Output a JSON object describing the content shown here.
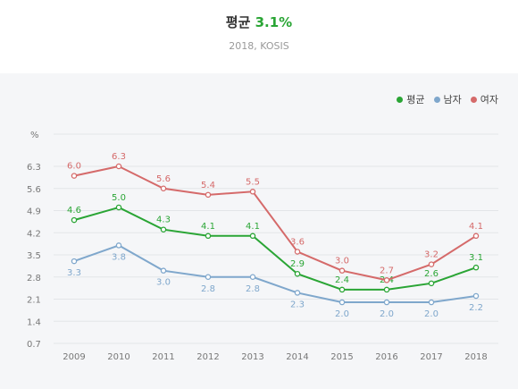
{
  "header": {
    "title_label": "평균",
    "title_value": "3.1%",
    "subtitle": "2018, KOSIS"
  },
  "colors": {
    "avg": "#2aa535",
    "male": "#7fa7cc",
    "female": "#d56a6a",
    "grid": "#e3e5e8",
    "tick": "#777777"
  },
  "chart_data": {
    "type": "line",
    "unit": "%",
    "x": [
      "2009",
      "2010",
      "2011",
      "2012",
      "2013",
      "2014",
      "2015",
      "2016",
      "2017",
      "2018"
    ],
    "y_ticks": [
      "6.3",
      "5.6",
      "4.9",
      "4.2",
      "3.5",
      "2.8",
      "2.1",
      "1.4",
      "0.7"
    ],
    "ylim": [
      0.7,
      6.3
    ],
    "grid": true,
    "legend": "top-right",
    "series": [
      {
        "key": "avg",
        "name": "평균",
        "values": [
          4.6,
          5.0,
          4.3,
          4.1,
          4.1,
          2.9,
          2.4,
          2.4,
          2.6,
          3.1
        ],
        "labels": [
          "4.6",
          "5.0",
          "4.3",
          "4.1",
          "4.1",
          "2.9",
          "2.4",
          "2.4",
          "2.6",
          "3.1"
        ]
      },
      {
        "key": "male",
        "name": "남자",
        "values": [
          3.3,
          3.8,
          3.0,
          2.8,
          2.8,
          2.3,
          2.0,
          2.0,
          2.0,
          2.2
        ],
        "labels": [
          "3.3",
          "3.8",
          "3.0",
          "2.8",
          "2.8",
          "2.3",
          "2.0",
          "2.0",
          "2.0",
          "2.2"
        ]
      },
      {
        "key": "female",
        "name": "여자",
        "values": [
          6.0,
          6.3,
          5.6,
          5.4,
          5.5,
          3.6,
          3.0,
          2.7,
          3.2,
          4.1
        ],
        "labels": [
          "6.0",
          "6.3",
          "5.6",
          "5.4",
          "5.5",
          "3.6",
          "3.0",
          "2.7",
          "3.2",
          "4.1"
        ]
      }
    ]
  }
}
